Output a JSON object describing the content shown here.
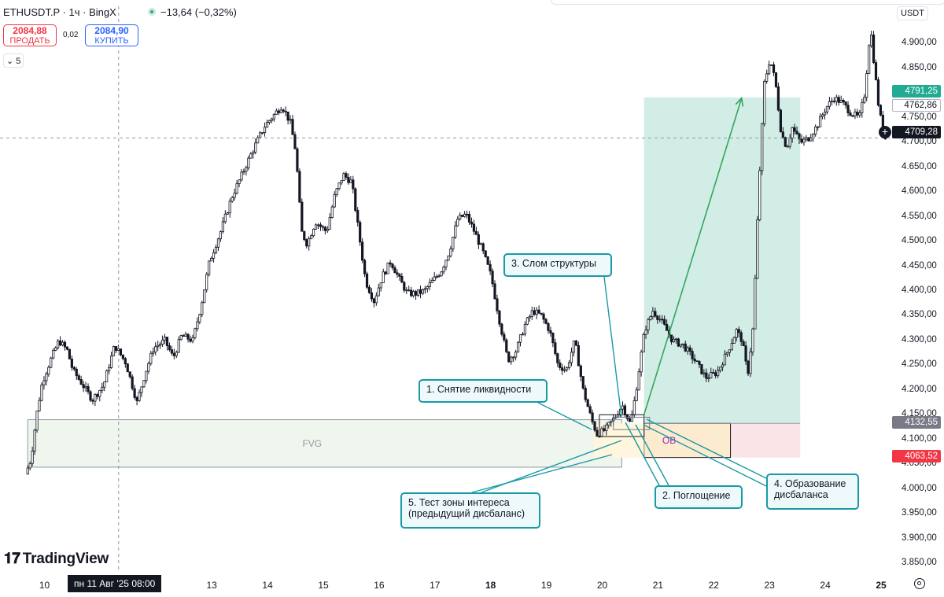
{
  "header": {
    "symbol": "ETHUSDT.P · 1ч · BingX",
    "change": "−13,64 (−0,32%)",
    "sell_price": "2084,88",
    "sell_label": "ПРОДАТЬ",
    "spread": "0,02",
    "buy_price": "2084,90",
    "buy_label": "КУПИТЬ",
    "collapse_count": "5"
  },
  "branding": {
    "logo": "TradingView"
  },
  "price_scale": {
    "currency": "USDT",
    "tags": {
      "target": "4791,25",
      "outline": "4762,86",
      "last": "4709,28",
      "entry": "4132,55",
      "stop": "4063,52"
    }
  },
  "time_axis": {
    "crosshair_label": "пн 11 Авг '25   08:00"
  },
  "annotations": {
    "a1": "1. Снятие ликвидности",
    "a2": "2. Поглощение",
    "a3": "3. Слом структуры",
    "a4_line1": "4. Образование",
    "a4_line2": "дисбаланса",
    "a5_line1": "5. Тест зоны интереса",
    "a5_line2": "(предыдущий дисбаланс)"
  },
  "zones": {
    "fvg": "FVG",
    "ob": "OB"
  },
  "colors": {
    "up": "#131722",
    "down": "#131722",
    "target_zone": "#d2ede6",
    "stop_zone": "#fbe4e7",
    "fvg_zone": "#eef6ee",
    "ob_zone": "#fdebd0",
    "arrow": "#33a65a",
    "note_border": "#1a9aa6"
  },
  "chart_data": {
    "type": "candlestick",
    "ylim": [
      3820,
      4960
    ],
    "y_ticks": [
      3850,
      3900,
      3950,
      4000,
      4050,
      4100,
      4150,
      4200,
      4250,
      4300,
      4350,
      4400,
      4450,
      4500,
      4550,
      4600,
      4650,
      4700,
      4750,
      4800,
      4850,
      4900
    ],
    "y_tick_labels": [
      "3.850,00",
      "3.900,00",
      "3.950,00",
      "4.000,00",
      "4.050,00",
      "4.100,00",
      "4.150,00",
      "4.200,00",
      "4.250,00",
      "4.300,00",
      "4.350,00",
      "4.400,00",
      "4.450,00",
      "4.500,00",
      "4.550,00",
      "4.600,00",
      "4.650,00",
      "4.700,00",
      "4.750,00",
      "4.800,00",
      "4.850,00",
      "4.900,00"
    ],
    "x_range_days": [
      9.7,
      25.7
    ],
    "x_ticks": [
      {
        "day": 10,
        "label": "10",
        "bold": false
      },
      {
        "day": 13,
        "label": "13",
        "bold": false
      },
      {
        "day": 14,
        "label": "14",
        "bold": false
      },
      {
        "day": 15,
        "label": "15",
        "bold": false
      },
      {
        "day": 16,
        "label": "16",
        "bold": false
      },
      {
        "day": 17,
        "label": "17",
        "bold": false
      },
      {
        "day": 18,
        "label": "18",
        "bold": true
      },
      {
        "day": 19,
        "label": "19",
        "bold": false
      },
      {
        "day": 20,
        "label": "20",
        "bold": false
      },
      {
        "day": 21,
        "label": "21",
        "bold": false
      },
      {
        "day": 22,
        "label": "22",
        "bold": false
      },
      {
        "day": 23,
        "label": "23",
        "bold": false
      },
      {
        "day": 24,
        "label": "24",
        "bold": false
      },
      {
        "day": 25,
        "label": "25",
        "bold": true
      }
    ],
    "crosshair": {
      "day": 11.33,
      "price": 4709.28
    },
    "price_path": [
      [
        9.7,
        4030
      ],
      [
        9.8,
        4060
      ],
      [
        9.9,
        4150
      ],
      [
        10.0,
        4215
      ],
      [
        10.15,
        4260
      ],
      [
        10.3,
        4300
      ],
      [
        10.45,
        4280
      ],
      [
        10.55,
        4240
      ],
      [
        10.7,
        4215
      ],
      [
        10.9,
        4180
      ],
      [
        11.1,
        4210
      ],
      [
        11.3,
        4290
      ],
      [
        11.5,
        4255
      ],
      [
        11.7,
        4175
      ],
      [
        11.85,
        4235
      ],
      [
        12.0,
        4285
      ],
      [
        12.2,
        4300
      ],
      [
        12.35,
        4265
      ],
      [
        12.5,
        4310
      ],
      [
        12.7,
        4300
      ],
      [
        12.85,
        4370
      ],
      [
        13.0,
        4460
      ],
      [
        13.2,
        4520
      ],
      [
        13.4,
        4590
      ],
      [
        13.6,
        4640
      ],
      [
        13.8,
        4690
      ],
      [
        14.0,
        4735
      ],
      [
        14.15,
        4755
      ],
      [
        14.3,
        4775
      ],
      [
        14.45,
        4740
      ],
      [
        14.55,
        4680
      ],
      [
        14.65,
        4520
      ],
      [
        14.75,
        4495
      ],
      [
        14.9,
        4540
      ],
      [
        15.1,
        4520
      ],
      [
        15.25,
        4595
      ],
      [
        15.4,
        4635
      ],
      [
        15.55,
        4620
      ],
      [
        15.7,
        4500
      ],
      [
        15.8,
        4420
      ],
      [
        15.95,
        4380
      ],
      [
        16.1,
        4430
      ],
      [
        16.25,
        4460
      ],
      [
        16.4,
        4425
      ],
      [
        16.55,
        4395
      ],
      [
        16.7,
        4395
      ],
      [
        16.85,
        4400
      ],
      [
        17.0,
        4420
      ],
      [
        17.15,
        4440
      ],
      [
        17.3,
        4480
      ],
      [
        17.45,
        4545
      ],
      [
        17.6,
        4555
      ],
      [
        17.75,
        4520
      ],
      [
        17.9,
        4480
      ],
      [
        18.05,
        4430
      ],
      [
        18.2,
        4340
      ],
      [
        18.35,
        4260
      ],
      [
        18.5,
        4280
      ],
      [
        18.65,
        4330
      ],
      [
        18.8,
        4360
      ],
      [
        18.95,
        4350
      ],
      [
        19.1,
        4320
      ],
      [
        19.25,
        4250
      ],
      [
        19.4,
        4240
      ],
      [
        19.55,
        4300
      ],
      [
        19.7,
        4200
      ],
      [
        19.85,
        4140
      ],
      [
        19.95,
        4110
      ],
      [
        20.1,
        4120
      ],
      [
        20.2,
        4135
      ],
      [
        20.3,
        4150
      ],
      [
        20.4,
        4170
      ],
      [
        20.55,
        4130
      ],
      [
        20.65,
        4200
      ],
      [
        20.8,
        4320
      ],
      [
        20.95,
        4360
      ],
      [
        21.1,
        4340
      ],
      [
        21.3,
        4300
      ],
      [
        21.5,
        4290
      ],
      [
        21.7,
        4260
      ],
      [
        21.9,
        4225
      ],
      [
        22.1,
        4235
      ],
      [
        22.3,
        4280
      ],
      [
        22.45,
        4320
      ],
      [
        22.55,
        4300
      ],
      [
        22.65,
        4230
      ],
      [
        22.75,
        4330
      ],
      [
        22.85,
        4610
      ],
      [
        22.95,
        4820
      ],
      [
        23.05,
        4870
      ],
      [
        23.15,
        4820
      ],
      [
        23.25,
        4720
      ],
      [
        23.35,
        4690
      ],
      [
        23.45,
        4730
      ],
      [
        23.6,
        4700
      ],
      [
        23.75,
        4710
      ],
      [
        23.9,
        4735
      ],
      [
        24.05,
        4770
      ],
      [
        24.2,
        4790
      ],
      [
        24.35,
        4780
      ],
      [
        24.5,
        4760
      ],
      [
        24.65,
        4750
      ],
      [
        24.75,
        4800
      ],
      [
        24.85,
        4935
      ],
      [
        24.92,
        4855
      ],
      [
        25.0,
        4770
      ],
      [
        25.1,
        4709
      ]
    ],
    "zones": [
      {
        "name": "target",
        "day_start": 20.75,
        "day_end": 23.55,
        "price_top": 4791.25,
        "price_bottom": 4132.55
      },
      {
        "name": "stop",
        "day_start": 22.3,
        "day_end": 23.55,
        "price_top": 4132.55,
        "price_bottom": 4063.52
      },
      {
        "name": "fvg",
        "day_start": 9.7,
        "day_end": 20.35,
        "price_top": 4140,
        "price_bottom": 4044
      },
      {
        "name": "ob",
        "day_start": 20.75,
        "day_end": 22.3,
        "price_top": 4132.55,
        "price_bottom": 4063.52
      },
      {
        "name": "ob-left",
        "day_start": 19.85,
        "day_end": 20.75,
        "price_top": 4132.55,
        "price_bottom": 4063.52
      }
    ],
    "arrow": {
      "from": [
        20.75,
        4150
      ],
      "to": [
        22.5,
        4790
      ]
    },
    "last_price_line": 4709.28
  }
}
